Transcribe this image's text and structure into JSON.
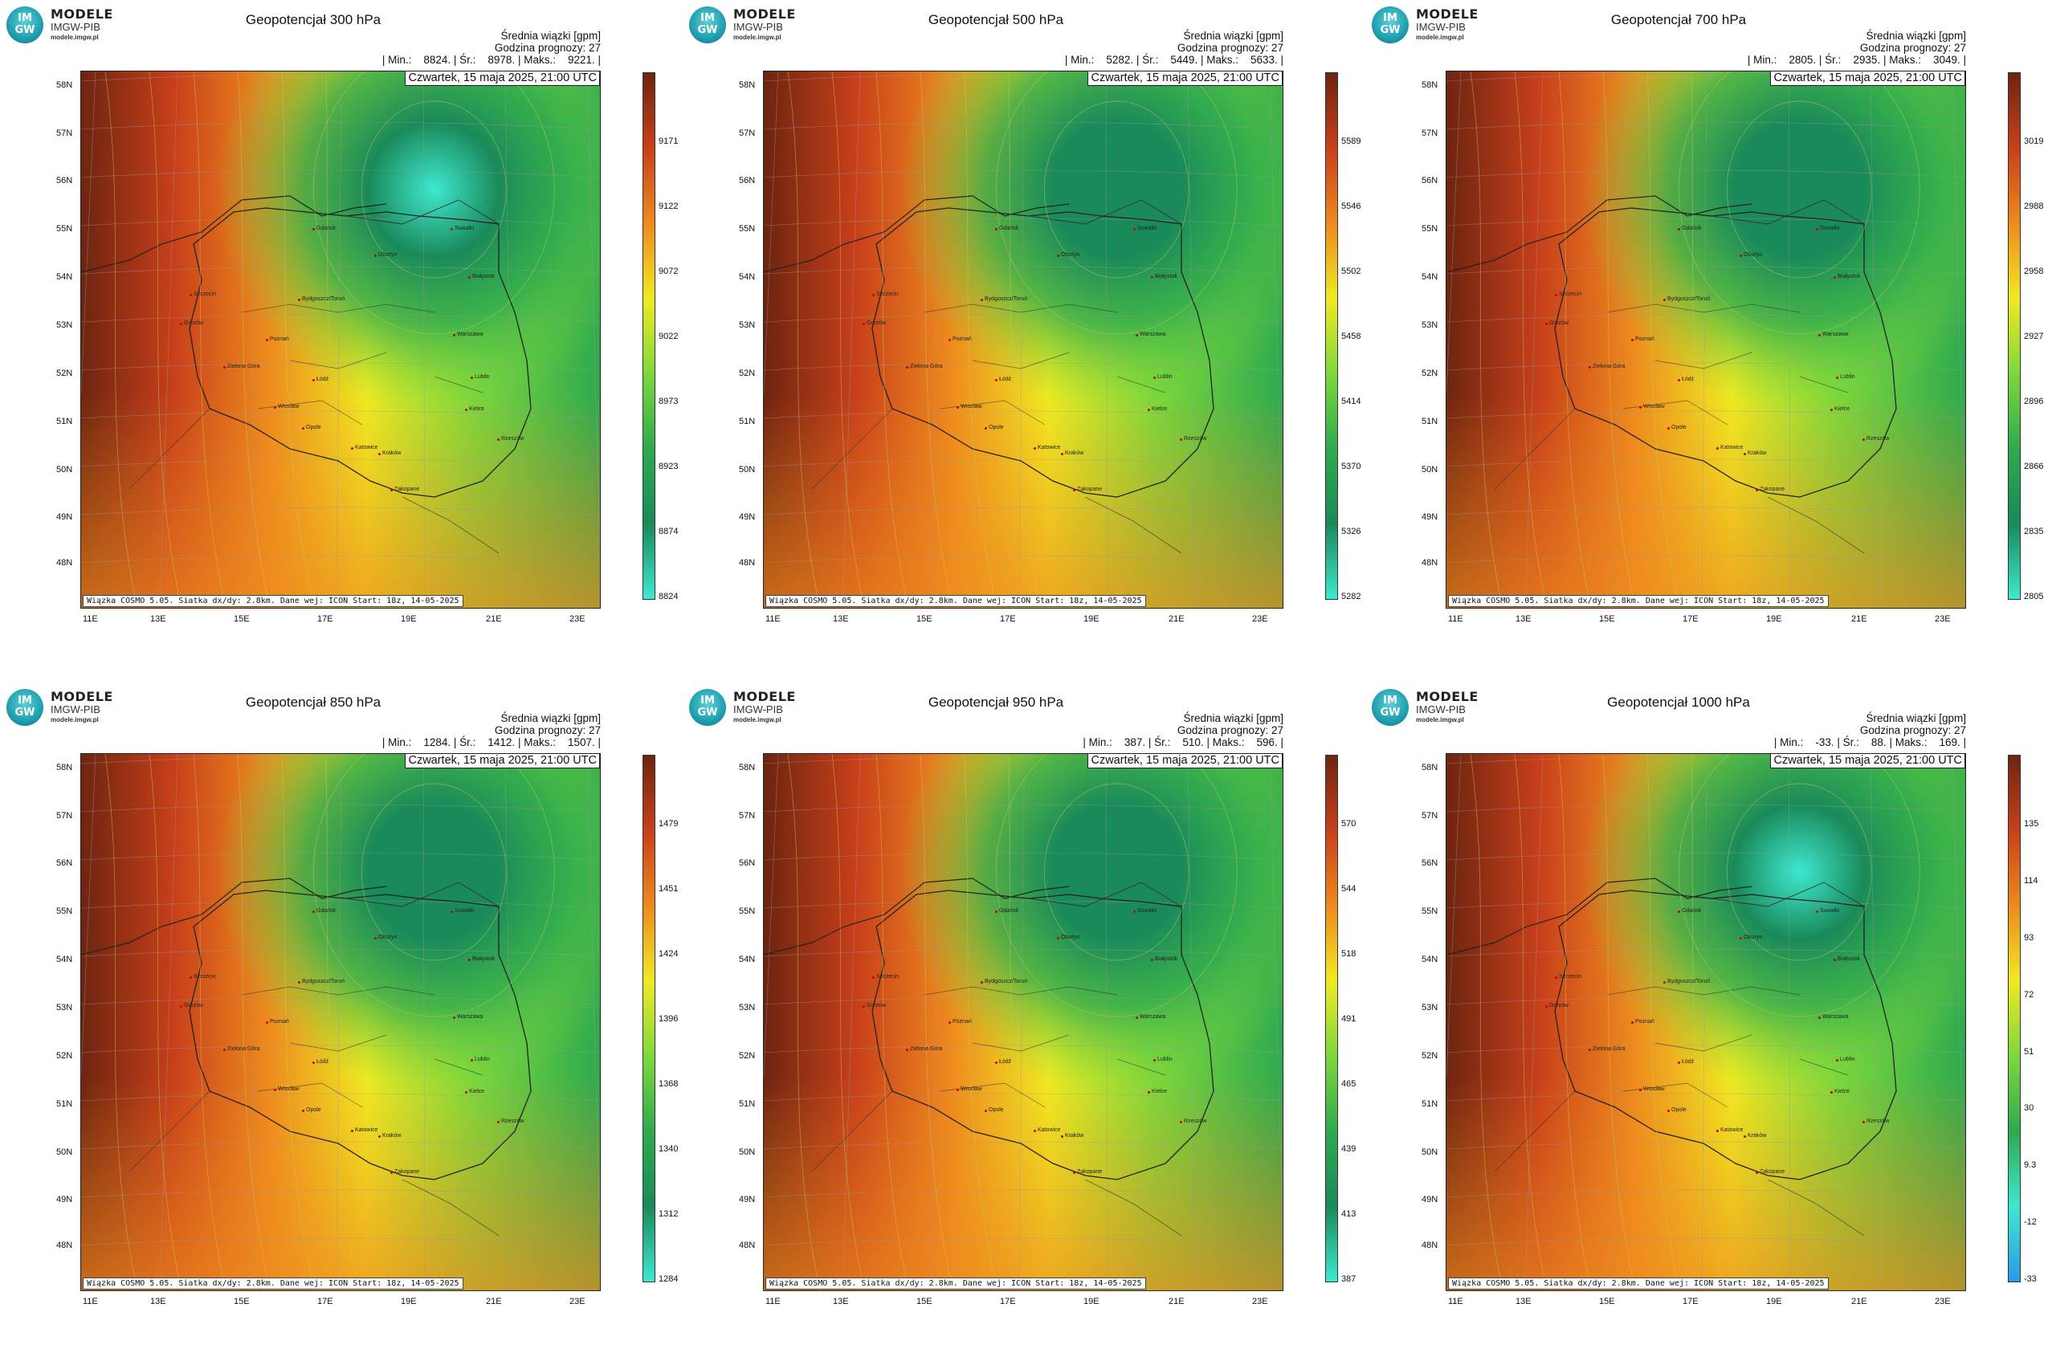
{
  "logo": {
    "brand": "MODELE",
    "org": "IMGW-PIB",
    "url": "modele.imgw.pl",
    "disc_line1": "IM",
    "disc_line2": "GW"
  },
  "common": {
    "meta_line1": "Średnia wiązki [gpm]",
    "meta_line2": "Godzina prognozy: 27",
    "date": "Czwartek, 15 maja 2025, 21:00 UTC",
    "source": "Wiązka COSMO 5.05. Siatka dx/dy: 2.8km. Dane wej: ICON Start: 18z, 14-05-2025",
    "lat_labels": [
      "58N",
      "57N",
      "56N",
      "55N",
      "54N",
      "53N",
      "52N",
      "51N",
      "50N",
      "49N",
      "48N"
    ],
    "lon_labels": [
      "11E",
      "13E",
      "15E",
      "17E",
      "19E",
      "21E",
      "23E"
    ],
    "cities": [
      "Gdańsk",
      "Olsztyn",
      "Suwałki",
      "Białystok",
      "Szczecin",
      "Gorzów",
      "Bydgoszcz/Toruń",
      "Poznań",
      "Warszawa",
      "Łódź",
      "Zielona Góra",
      "Lublin",
      "Wrocław",
      "Opole",
      "Kielce",
      "Katowice",
      "Kraków",
      "Rzeszów",
      "Zakopane"
    ]
  },
  "colors": {
    "dark_red": "#6e2410",
    "red": "#c8401a",
    "orange": "#ee8a1e",
    "yellow": "#f0ea22",
    "green_light": "#7ed83c",
    "green": "#2eaa4e",
    "green_dark": "#1a8a5a",
    "cyan": "#3ee8d0",
    "blue": "#2a9ae8"
  },
  "panels": [
    {
      "title": "Geopotencjał 300 hPa",
      "stats": "| Min.:    8824. | Śr.:    8978. | Maks.:    9221. |",
      "ticks": [
        "9171",
        "9122",
        "9072",
        "9022",
        "8973",
        "8923",
        "8874",
        "8824"
      ],
      "low": "north-east"
    },
    {
      "title": "Geopotencjał 500 hPa",
      "stats": "| Min.:    5282. | Śr.:    5449. | Maks.:    5633. |",
      "ticks": [
        "5589",
        "5546",
        "5502",
        "5458",
        "5414",
        "5370",
        "5326",
        "5282"
      ],
      "low": "north-east"
    },
    {
      "title": "Geopotencjał 700 hPa",
      "stats": "| Min.:    2805. | Śr.:    2935. | Maks.:    3049. |",
      "ticks": [
        "3019",
        "2988",
        "2958",
        "2927",
        "2896",
        "2866",
        "2835",
        "2805"
      ],
      "low": "north-east"
    },
    {
      "title": "Geopotencjał 850 hPa",
      "stats": "| Min.:    1284. | Śr.:    1412. | Maks.:    1507. |",
      "ticks": [
        "1479",
        "1451",
        "1424",
        "1396",
        "1368",
        "1340",
        "1312",
        "1284"
      ],
      "low": "north-east"
    },
    {
      "title": "Geopotencjał 950 hPa",
      "stats": "| Min.:    387. | Śr.:    510. | Maks.:    596. |",
      "ticks": [
        "570",
        "544",
        "518",
        "491",
        "465",
        "439",
        "413",
        "387"
      ],
      "low": "north-east"
    },
    {
      "title": "Geopotencjał 1000 hPa",
      "stats": "| Min.:    -33. | Śr.:    88. | Maks.:    169. |",
      "ticks": [
        "135",
        "114",
        "93",
        "72",
        "51",
        "30",
        "9.3",
        "-12",
        "-33"
      ],
      "low": "north-east"
    }
  ]
}
